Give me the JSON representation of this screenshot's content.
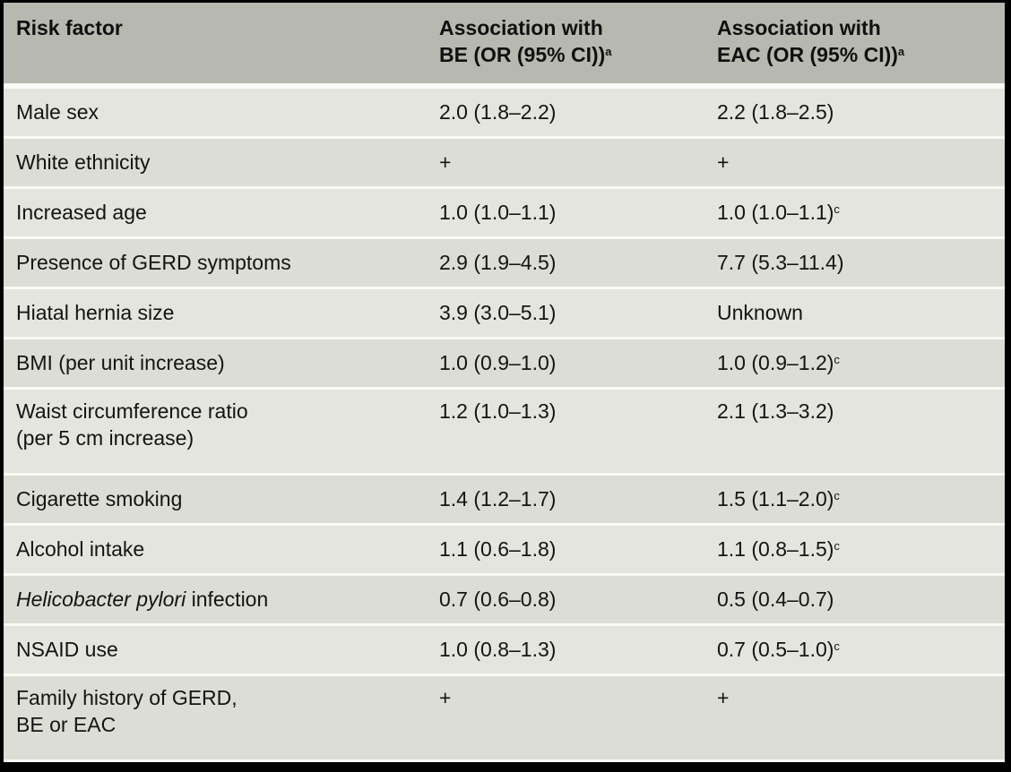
{
  "table": {
    "columns": [
      {
        "line1": "Risk factor",
        "line2": "",
        "sup": ""
      },
      {
        "line1": "Association with",
        "line2": "BE (OR (95% CI))",
        "sup": "a"
      },
      {
        "line1": "Association with",
        "line2": "EAC (OR (95% CI))",
        "sup": "a"
      }
    ],
    "rows": [
      {
        "factor_italic": "",
        "factor": "Male sex",
        "factor2": "",
        "be": "2.0 (1.8–2.2)",
        "be_sup": "",
        "eac": "2.2 (1.8–2.5)",
        "eac_sup": ""
      },
      {
        "factor_italic": "",
        "factor": "White ethnicity",
        "factor2": "",
        "be": "+",
        "be_sup": "",
        "eac": "+",
        "eac_sup": ""
      },
      {
        "factor_italic": "",
        "factor": "Increased age",
        "factor2": "",
        "be": "1.0 (1.0–1.1)",
        "be_sup": "",
        "eac": "1.0 (1.0–1.1)",
        "eac_sup": "c"
      },
      {
        "factor_italic": "",
        "factor": "Presence of GERD symptoms",
        "factor2": "",
        "be": "2.9 (1.9–4.5)",
        "be_sup": "",
        "eac": "7.7 (5.3–11.4)",
        "eac_sup": ""
      },
      {
        "factor_italic": "",
        "factor": "Hiatal hernia size",
        "factor2": "",
        "be": "3.9 (3.0–5.1)",
        "be_sup": "",
        "eac": "Unknown",
        "eac_sup": ""
      },
      {
        "factor_italic": "",
        "factor": "BMI (per unit increase)",
        "factor2": "",
        "be": "1.0 (0.9–1.0)",
        "be_sup": "",
        "eac": "1.0 (0.9–1.2)",
        "eac_sup": "c"
      },
      {
        "factor_italic": "",
        "factor": "Waist circumference ratio",
        "factor2": "(per 5 cm increase)",
        "be": "1.2 (1.0–1.3)",
        "be_sup": "",
        "eac": "2.1 (1.3–3.2)",
        "eac_sup": ""
      },
      {
        "factor_italic": "",
        "factor": "Cigarette smoking",
        "factor2": "",
        "be": "1.4 (1.2–1.7)",
        "be_sup": "",
        "eac": "1.5 (1.1–2.0)",
        "eac_sup": "c"
      },
      {
        "factor_italic": "",
        "factor": "Alcohol intake",
        "factor2": "",
        "be": "1.1 (0.6–1.8)",
        "be_sup": "",
        "eac": "1.1 (0.8–1.5)",
        "eac_sup": "c"
      },
      {
        "factor_italic": "Helicobacter pylori",
        "factor": " infection",
        "factor2": "",
        "be": "0.7 (0.6–0.8)",
        "be_sup": "",
        "eac": "0.5 (0.4–0.7)",
        "eac_sup": ""
      },
      {
        "factor_italic": "",
        "factor": "NSAID use",
        "factor2": "",
        "be": "1.0 (0.8–1.3)",
        "be_sup": "",
        "eac": "0.7 (0.5–1.0)",
        "eac_sup": "c"
      },
      {
        "factor_italic": "",
        "factor": "Family history of GERD,",
        "factor2": "BE or EAC",
        "be": "+",
        "be_sup": "",
        "eac": "+",
        "eac_sup": ""
      }
    ]
  },
  "colors": {
    "header_bg": "#b7b9b0",
    "row_light": "#e4e5de",
    "row_dark": "#dcddd4",
    "separator": "#f9f9f5",
    "frame_border": "#000000",
    "text": "#141414"
  }
}
